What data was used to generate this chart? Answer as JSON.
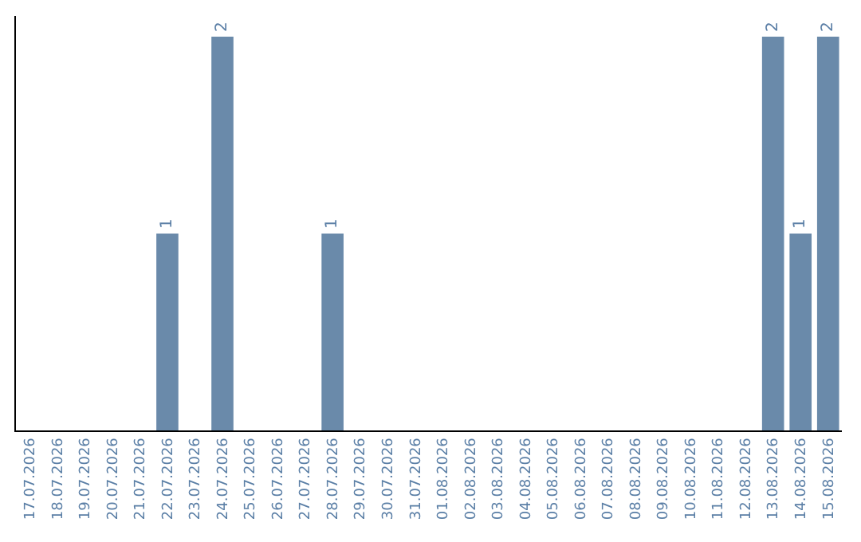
{
  "chart_data": {
    "type": "bar",
    "categories": [
      "17.07.2026",
      "18.07.2026",
      "19.07.2026",
      "20.07.2026",
      "21.07.2026",
      "22.07.2026",
      "23.07.2026",
      "24.07.2026",
      "25.07.2026",
      "26.07.2026",
      "27.07.2026",
      "28.07.2026",
      "29.07.2026",
      "30.07.2026",
      "31.07.2026",
      "01.08.2026",
      "02.08.2026",
      "03.08.2026",
      "04.08.2026",
      "05.08.2026",
      "06.08.2026",
      "07.08.2026",
      "08.08.2026",
      "09.08.2026",
      "10.08.2026",
      "11.08.2026",
      "12.08.2026",
      "13.08.2026",
      "14.08.2026",
      "15.08.2026"
    ],
    "values": [
      0,
      0,
      0,
      0,
      0,
      1,
      0,
      2,
      0,
      0,
      0,
      1,
      0,
      0,
      0,
      0,
      0,
      0,
      0,
      0,
      0,
      0,
      0,
      0,
      0,
      0,
      0,
      2,
      1,
      2
    ],
    "value_labels": [
      null,
      null,
      null,
      null,
      null,
      "1",
      null,
      "2",
      null,
      null,
      null,
      "1",
      null,
      null,
      null,
      null,
      null,
      null,
      null,
      null,
      null,
      null,
      null,
      null,
      null,
      null,
      null,
      "2",
      "1",
      "2"
    ],
    "color": "#6a8aaa",
    "tick_labels": "x"
  }
}
